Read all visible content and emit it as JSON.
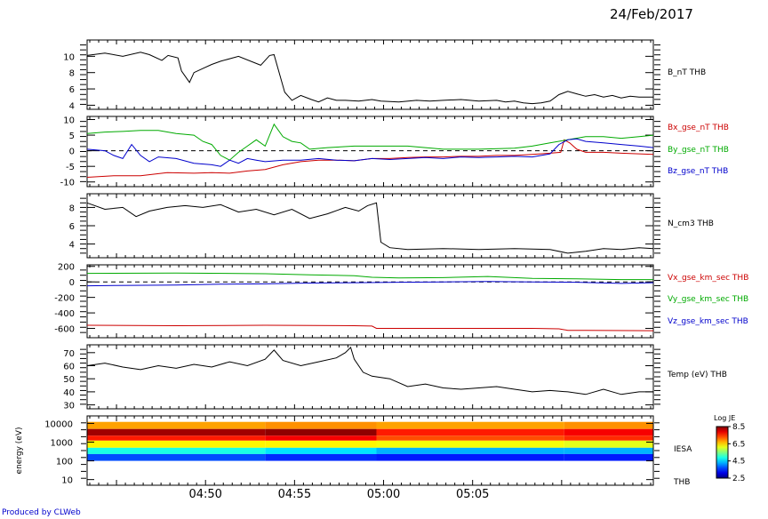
{
  "date": "24/Feb/2017",
  "credit": "Produced by CLWeb",
  "spectrogram_ylabel": "energy (eV)",
  "colorbar_title": "Log JE",
  "chart_data": [
    {
      "type": "line",
      "series": [
        {
          "name": "B_nT THB",
          "color": "#000000",
          "x": [
            0,
            2,
            4,
            6,
            7,
            8.4,
            9.1,
            10.2,
            10.6,
            11.5,
            12,
            13,
            14,
            15,
            17,
            19.5,
            20.5,
            21,
            22.2,
            23,
            24,
            25.2,
            26,
            27,
            28,
            29,
            30.5,
            32,
            33,
            35,
            37,
            38.5,
            40,
            42,
            44,
            46,
            47,
            48,
            49,
            50,
            51,
            52,
            53,
            54,
            55,
            56,
            57,
            58,
            59,
            60,
            61,
            62,
            63.6
          ],
          "y": [
            10.1,
            10.4,
            10.0,
            10.5,
            10.2,
            9.5,
            10.1,
            9.8,
            8.2,
            6.8,
            8.0,
            8.5,
            9.0,
            9.4,
            10.0,
            8.9,
            10.1,
            10.2,
            5.6,
            4.6,
            5.2,
            4.7,
            4.4,
            4.9,
            4.6,
            4.6,
            4.5,
            4.7,
            4.5,
            4.4,
            4.6,
            4.5,
            4.6,
            4.7,
            4.5,
            4.6,
            4.4,
            4.5,
            4.3,
            4.2,
            4.3,
            4.5,
            5.3,
            5.7,
            5.4,
            5.1,
            5.3,
            5.0,
            5.2,
            4.9,
            5.1,
            5.0,
            5.0
          ]
        }
      ],
      "ylim": [
        3.5,
        12
      ],
      "yticks": [
        4,
        6,
        8,
        10
      ]
    },
    {
      "type": "line",
      "series": [
        {
          "name": "Bx_gse_nT THB",
          "color": "#cc0000",
          "x": [
            0,
            3,
            6,
            9,
            12,
            14,
            16,
            18,
            20,
            22,
            24,
            26,
            28,
            30,
            32,
            34,
            36,
            38,
            40,
            42,
            44,
            46,
            48,
            50,
            52,
            53.2,
            53.6,
            54.2,
            55,
            56,
            58,
            60,
            62,
            63.6
          ],
          "y": [
            -8.5,
            -8.0,
            -8.0,
            -7.0,
            -7.2,
            -7.0,
            -7.2,
            -6.5,
            -6.0,
            -4.5,
            -3.5,
            -3.0,
            -3.0,
            -3.2,
            -2.5,
            -2.5,
            -2.2,
            -2.0,
            -2.0,
            -1.8,
            -1.8,
            -1.5,
            -1.5,
            -1.2,
            -0.8,
            -0.5,
            3.5,
            2.5,
            0.5,
            -0.5,
            -0.5,
            -0.8,
            -1.0,
            -1.2
          ]
        },
        {
          "name": "By_gse_nT THB",
          "color": "#00aa00",
          "x": [
            0,
            2,
            4,
            6,
            8,
            10,
            12,
            13,
            14,
            15,
            16,
            17,
            18,
            19,
            20,
            21,
            22,
            23,
            24,
            25,
            27,
            30,
            33,
            36,
            40,
            44,
            48,
            50,
            52,
            54,
            56,
            58,
            60,
            62,
            63.6
          ],
          "y": [
            5.5,
            6.0,
            6.2,
            6.5,
            6.5,
            5.5,
            5.0,
            3.0,
            2.0,
            -1.5,
            -3.0,
            -0.5,
            1.5,
            3.5,
            1.5,
            8.5,
            4.5,
            3.0,
            2.5,
            0.5,
            1.0,
            1.5,
            1.5,
            1.5,
            0.5,
            0.5,
            0.8,
            1.5,
            2.5,
            3.5,
            4.5,
            4.5,
            4.0,
            4.5,
            5.0
          ]
        },
        {
          "name": "Bz_gse_nT THB",
          "color": "#0000cc",
          "x": [
            0,
            2,
            3,
            4,
            5,
            6,
            7,
            8,
            10,
            12,
            14,
            15,
            16,
            17,
            18,
            19,
            20,
            22,
            24,
            26,
            28,
            30,
            32,
            34,
            36,
            38,
            40,
            42,
            44,
            46,
            48,
            50,
            52,
            53,
            54,
            55,
            56,
            58,
            60,
            62,
            63.6
          ],
          "y": [
            0.5,
            0.0,
            -1.5,
            -2.5,
            2.0,
            -1.5,
            -3.5,
            -2.0,
            -2.5,
            -4.0,
            -4.5,
            -5.0,
            -3.0,
            -4.0,
            -2.5,
            -3.0,
            -3.5,
            -3.0,
            -3.0,
            -2.5,
            -3.0,
            -3.2,
            -2.5,
            -2.8,
            -2.5,
            -2.2,
            -2.5,
            -2.0,
            -2.2,
            -2.0,
            -1.8,
            -2.0,
            -1.0,
            2.0,
            3.5,
            3.8,
            3.0,
            2.5,
            2.0,
            1.5,
            1.0
          ]
        }
      ],
      "ylim": [
        -11.5,
        11
      ],
      "yticks": [
        -10,
        -5,
        0,
        5,
        10
      ],
      "reference_line": 0
    },
    {
      "type": "line",
      "series": [
        {
          "name": "N_cm3 THB",
          "color": "#000000",
          "x": [
            0,
            2,
            4,
            5.5,
            7,
            9,
            11,
            13,
            15,
            17,
            19,
            21,
            23,
            25,
            27,
            29,
            30.5,
            31.5,
            32.5,
            33,
            34,
            36,
            40,
            44,
            48,
            52,
            54,
            56,
            58,
            60,
            62,
            63.6
          ],
          "y": [
            8.5,
            7.8,
            8.0,
            7.0,
            7.6,
            8.0,
            8.2,
            8.0,
            8.3,
            7.5,
            7.8,
            7.2,
            7.8,
            6.8,
            7.3,
            8.0,
            7.6,
            8.2,
            8.5,
            4.2,
            3.6,
            3.4,
            3.5,
            3.4,
            3.5,
            3.4,
            3.0,
            3.2,
            3.5,
            3.4,
            3.6,
            3.5
          ]
        }
      ],
      "ylim": [
        2.5,
        9.5
      ],
      "yticks": [
        4,
        6,
        8
      ]
    },
    {
      "type": "line",
      "series": [
        {
          "name": "Vx_gse_km_sec THB",
          "color": "#cc0000",
          "x": [
            0,
            10,
            20,
            30,
            32,
            32.5,
            40,
            50,
            53,
            54,
            56,
            63.6
          ],
          "y": [
            -560,
            -565,
            -560,
            -565,
            -570,
            -600,
            -600,
            -600,
            -605,
            -625,
            -625,
            -630
          ]
        },
        {
          "name": "Vy_gse_km_sec THB",
          "color": "#00aa00",
          "x": [
            0,
            10,
            20,
            25,
            30,
            32,
            35,
            40,
            45,
            50,
            55,
            60,
            63.6
          ],
          "y": [
            110,
            115,
            105,
            90,
            80,
            60,
            50,
            55,
            70,
            45,
            40,
            30,
            30
          ]
        },
        {
          "name": "Vz_gse_km_sec THB",
          "color": "#0000cc",
          "x": [
            0,
            5,
            10,
            15,
            20,
            25,
            30,
            35,
            40,
            45,
            50,
            55,
            60,
            63.6
          ],
          "y": [
            -50,
            -45,
            -40,
            -30,
            -25,
            -15,
            -10,
            -5,
            0,
            5,
            0,
            -5,
            -20,
            -10
          ]
        }
      ],
      "ylim": [
        -720,
        220
      ],
      "yticks": [
        -600,
        -400,
        -200,
        0,
        200
      ],
      "reference_line": 0
    },
    {
      "type": "line",
      "series": [
        {
          "name": "Temp (eV) THB",
          "color": "#000000",
          "x": [
            0,
            2,
            4,
            6,
            8,
            10,
            12,
            14,
            16,
            18,
            20,
            21,
            22,
            24,
            26,
            28,
            29,
            29.6,
            30,
            31,
            32,
            34,
            36,
            38,
            40,
            42,
            44,
            46,
            48,
            50,
            52,
            54,
            56,
            58,
            60,
            62,
            63.6
          ],
          "y": [
            60,
            62,
            59,
            57,
            60,
            58,
            61,
            59,
            63,
            60,
            65,
            72,
            64,
            60,
            63,
            66,
            70,
            74,
            65,
            55,
            52,
            50,
            44,
            46,
            43,
            42,
            43,
            44,
            42,
            40,
            41,
            40,
            38,
            42,
            38,
            40,
            40
          ]
        }
      ],
      "ylim": [
        27,
        76
      ],
      "yticks": [
        30,
        40,
        50,
        60,
        70
      ]
    },
    {
      "type": "heatmap",
      "name": "IESA",
      "yscale": "log",
      "ylim": [
        5,
        25000
      ],
      "yticks": [
        10,
        100,
        1000,
        10000
      ],
      "colorbar": {
        "min": 2.5,
        "max": 8.5,
        "ticks": [
          2.5,
          4.5,
          6.5,
          8.5
        ]
      },
      "bands": [
        {
          "e_low": 5000,
          "e_high": 12000,
          "values": [
            6.8,
            6.9,
            6.8,
            6.9
          ]
        },
        {
          "e_low": 2200,
          "e_high": 5000,
          "values": [
            8.3,
            8.4,
            7.6,
            7.8
          ]
        },
        {
          "e_low": 1200,
          "e_high": 2200,
          "values": [
            7.6,
            7.8,
            7.3,
            7.5
          ]
        },
        {
          "e_low": 500,
          "e_high": 1200,
          "values": [
            6.3,
            6.3,
            6.2,
            6.1
          ]
        },
        {
          "e_low": 230,
          "e_high": 500,
          "values": [
            4.9,
            4.6,
            4.3,
            4.3
          ]
        },
        {
          "e_low": 100,
          "e_high": 230,
          "values": [
            3.7,
            3.5,
            3.4,
            3.4
          ]
        }
      ],
      "time_edges": [
        0,
        20,
        32.5,
        53.6,
        63.6
      ]
    }
  ],
  "x_axis": {
    "range": [
      0,
      63.6
    ],
    "tick_minutes": [
      3,
      13,
      23,
      33,
      43,
      53
    ],
    "tick_labels": [
      "04:50",
      "04:55",
      "05:00",
      "05:05"
    ],
    "labeled_minutes": [
      13,
      23,
      33,
      43
    ]
  },
  "station_label": "THB"
}
